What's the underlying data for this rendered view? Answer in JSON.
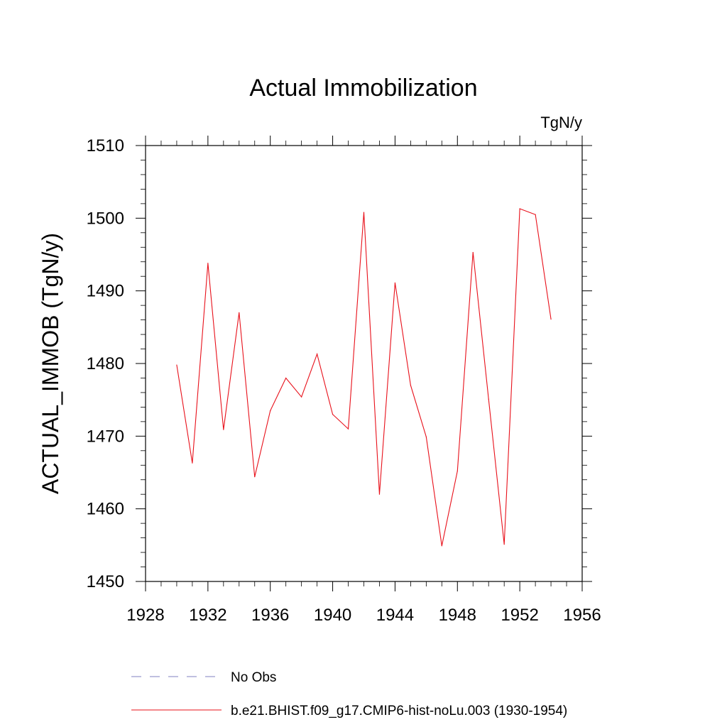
{
  "chart_data": {
    "type": "line",
    "title": "Actual Immobilization",
    "units_label": "TgN/y",
    "xlabel": "",
    "ylabel": "ACTUAL_IMMOB  (TgN/y)",
    "xlim": [
      1928,
      1956
    ],
    "ylim": [
      1450,
      1510
    ],
    "x_ticks": [
      1928,
      1932,
      1936,
      1940,
      1944,
      1948,
      1952,
      1956
    ],
    "y_ticks": [
      1450,
      1460,
      1470,
      1480,
      1490,
      1500,
      1510
    ],
    "grid": false,
    "legend_position": "bottom",
    "series": [
      {
        "name": "No Obs",
        "color": "#8080c0",
        "style": "dashed",
        "x": [],
        "values": []
      },
      {
        "name": "b.e21.BHIST.f09_g17.CMIP6-hist-noLu.003 (1930-1954)",
        "color": "#e8101a",
        "style": "solid",
        "x": [
          1930,
          1931,
          1932,
          1933,
          1934,
          1935,
          1936,
          1937,
          1938,
          1939,
          1940,
          1941,
          1942,
          1943,
          1944,
          1945,
          1946,
          1947,
          1948,
          1949,
          1950,
          1951,
          1952,
          1953,
          1954
        ],
        "values": [
          1479.8,
          1466.3,
          1493.8,
          1470.9,
          1487.0,
          1464.4,
          1473.5,
          1478.0,
          1475.4,
          1481.3,
          1473.0,
          1471.0,
          1500.8,
          1462.0,
          1491.1,
          1477.0,
          1469.9,
          1454.9,
          1465.2,
          1495.3,
          1475.1,
          1455.1,
          1501.3,
          1500.5,
          1486.1
        ]
      }
    ]
  }
}
